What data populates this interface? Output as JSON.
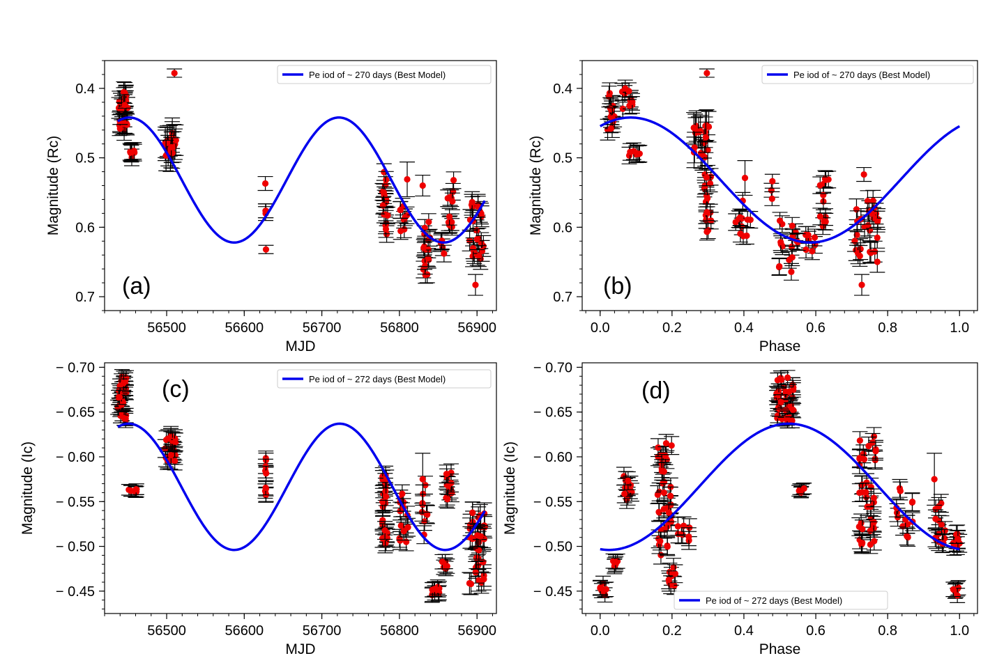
{
  "colors": {
    "model": "#0000ee",
    "points": "#ee0000",
    "errorbar": "#000000",
    "frame": "#000000"
  },
  "chart_data": [
    {
      "type": "scatter",
      "panel": "(a)",
      "xlabel": "MJD",
      "ylabel": "Magnitude (Rc)",
      "xlim": [
        56420,
        56925
      ],
      "ylim": [
        0.72,
        0.36
      ],
      "y_inverted": true,
      "xticks": [
        56500,
        56600,
        56700,
        56800,
        56900
      ],
      "xtick_labels": [
        "56500",
        "56600",
        "56700",
        "56800",
        "56900"
      ],
      "yticks": [
        0.4,
        0.5,
        0.6,
        0.7
      ],
      "ytick_labels": [
        "0.4",
        "0.5",
        "0.6",
        "0.7"
      ],
      "legend_label": "Pe iod of ~ 270 days (Best Model)",
      "legend_position": "top-right",
      "model": {
        "kind": "sinusoid",
        "period": 270,
        "mean": 0.532,
        "amplitude": 0.09,
        "phase_ref": 56587,
        "phase_ref_is": "maximum"
      },
      "groups": [
        {
          "x": [
            56437,
            56450
          ],
          "y": [
            0.4,
            0.46
          ],
          "n": 26,
          "err": 0.015
        },
        {
          "x": [
            56450,
            56462
          ],
          "y": [
            0.49,
            0.5
          ],
          "n": 8,
          "err": 0.012
        },
        {
          "x": [
            56498,
            56512
          ],
          "y": [
            0.45,
            0.5
          ],
          "n": 18,
          "err": 0.022
        },
        {
          "x": [
            56627,
            56629
          ],
          "y": [
            0.52,
            0.59
          ],
          "n": 4,
          "err": 0.01
        },
        {
          "x": [
            56778,
            56785
          ],
          "y": [
            0.52,
            0.61
          ],
          "n": 18,
          "err": 0.012
        },
        {
          "x": [
            56800,
            56812
          ],
          "y": [
            0.57,
            0.61
          ],
          "n": 8,
          "err": 0.012
        },
        {
          "x": [
            56830,
            56840
          ],
          "y": [
            0.59,
            0.67
          ],
          "n": 16,
          "err": 0.012
        },
        {
          "x": [
            56850,
            56858
          ],
          "y": [
            0.61,
            0.64
          ],
          "n": 6,
          "err": 0.012
        },
        {
          "x": [
            56862,
            56870
          ],
          "y": [
            0.53,
            0.6
          ],
          "n": 12,
          "err": 0.012
        },
        {
          "x": [
            56890,
            56910
          ],
          "y": [
            0.56,
            0.65
          ],
          "n": 24,
          "err": 0.015
        }
      ],
      "points": [
        {
          "x": 56510,
          "y": 0.378,
          "err": 0.006
        },
        {
          "x": 56628,
          "y": 0.632,
          "err": 0.006
        },
        {
          "x": 56898,
          "y": 0.683,
          "err": 0.015
        },
        {
          "x": 56810,
          "y": 0.531,
          "err": 0.025
        },
        {
          "x": 56830,
          "y": 0.54,
          "err": 0.015
        },
        {
          "x": 56440,
          "y": 0.458,
          "err": 0.006
        }
      ]
    },
    {
      "type": "scatter",
      "panel": "(b)",
      "xlabel": "Phase",
      "ylabel": "Magnitude (Rc)",
      "xlim": [
        -0.05,
        1.05
      ],
      "ylim": [
        0.72,
        0.36
      ],
      "y_inverted": true,
      "xticks": [
        0.0,
        0.2,
        0.4,
        0.6,
        0.8,
        1.0
      ],
      "xtick_labels": [
        "0.0",
        "0.2",
        "0.4",
        "0.6",
        "0.8",
        "1.0"
      ],
      "yticks": [
        0.4,
        0.5,
        0.6,
        0.7
      ],
      "ytick_labels": [
        "0.4",
        "0.5",
        "0.6",
        "0.7"
      ],
      "legend_label": "Pe iod of ~ 270 days (Best Model)",
      "legend_position": "top-right",
      "model": {
        "kind": "sinusoid-phase",
        "mean": 0.532,
        "amplitude": 0.09,
        "phase_of_max": 0.585
      },
      "groups": [
        {
          "x": [
            0.02,
            0.04
          ],
          "y": [
            0.4,
            0.46
          ],
          "n": 14,
          "err": 0.015
        },
        {
          "x": [
            0.06,
            0.09
          ],
          "y": [
            0.4,
            0.43
          ],
          "n": 10,
          "err": 0.012
        },
        {
          "x": [
            0.08,
            0.11
          ],
          "y": [
            0.49,
            0.5
          ],
          "n": 8,
          "err": 0.012
        },
        {
          "x": [
            0.26,
            0.31
          ],
          "y": [
            0.45,
            0.5
          ],
          "n": 18,
          "err": 0.022
        },
        {
          "x": [
            0.29,
            0.31
          ],
          "y": [
            0.52,
            0.61
          ],
          "n": 16,
          "err": 0.012
        },
        {
          "x": [
            0.37,
            0.42
          ],
          "y": [
            0.56,
            0.62
          ],
          "n": 12,
          "err": 0.012
        },
        {
          "x": [
            0.46,
            0.48
          ],
          "y": [
            0.53,
            0.56
          ],
          "n": 3,
          "err": 0.01
        },
        {
          "x": [
            0.49,
            0.55
          ],
          "y": [
            0.59,
            0.67
          ],
          "n": 16,
          "err": 0.012
        },
        {
          "x": [
            0.55,
            0.6
          ],
          "y": [
            0.61,
            0.64
          ],
          "n": 8,
          "err": 0.012
        },
        {
          "x": [
            0.61,
            0.64
          ],
          "y": [
            0.53,
            0.6
          ],
          "n": 12,
          "err": 0.012
        },
        {
          "x": [
            0.7,
            0.78
          ],
          "y": [
            0.56,
            0.65
          ],
          "n": 26,
          "err": 0.015
        }
      ],
      "points": [
        {
          "x": 0.297,
          "y": 0.378,
          "err": 0.006
        },
        {
          "x": 0.728,
          "y": 0.683,
          "err": 0.015
        },
        {
          "x": 0.734,
          "y": 0.524,
          "err": 0.01
        },
        {
          "x": 0.403,
          "y": 0.529,
          "err": 0.025
        },
        {
          "x": 0.03,
          "y": 0.458,
          "err": 0.006
        }
      ]
    },
    {
      "type": "scatter",
      "panel": "(c)",
      "xlabel": "MJD",
      "ylabel": "Magnitude (Ic)",
      "xlim": [
        56420,
        56925
      ],
      "ylim": [
        -0.425,
        -0.705
      ],
      "y_inverted": true,
      "xticks": [
        56500,
        56600,
        56700,
        56800,
        56900
      ],
      "xtick_labels": [
        "56500",
        "56600",
        "56700",
        "56800",
        "56900"
      ],
      "yticks": [
        -0.7,
        -0.65,
        -0.6,
        -0.55,
        -0.5,
        -0.45
      ],
      "ytick_labels": [
        "− 0.70",
        "− 0.65",
        "− 0.60",
        "− 0.55",
        "− 0.50",
        "− 0.45"
      ],
      "legend_label": "Pe iod of ~ 272 days (Best Model)",
      "legend_position": "top-right",
      "model": {
        "kind": "sinusoid",
        "period": 272,
        "mean": -0.5665,
        "amplitude": 0.0705,
        "phase_ref": 56587,
        "phase_ref_is": "maximum"
      },
      "groups": [
        {
          "x": [
            56437,
            56448
          ],
          "y": [
            -0.64,
            -0.69
          ],
          "n": 40,
          "err": 0.008
        },
        {
          "x": [
            56450,
            56462
          ],
          "y": [
            -0.56,
            -0.565
          ],
          "n": 8,
          "err": 0.006
        },
        {
          "x": [
            56498,
            56512
          ],
          "y": [
            -0.595,
            -0.625
          ],
          "n": 24,
          "err": 0.01
        },
        {
          "x": [
            56627,
            56629
          ],
          "y": [
            -0.545,
            -0.62
          ],
          "n": 10,
          "err": 0.008
        },
        {
          "x": [
            56778,
            56785
          ],
          "y": [
            -0.5,
            -0.585
          ],
          "n": 26,
          "err": 0.01
        },
        {
          "x": [
            56800,
            56812
          ],
          "y": [
            -0.505,
            -0.565
          ],
          "n": 14,
          "err": 0.01
        },
        {
          "x": [
            56828,
            56836
          ],
          "y": [
            -0.51,
            -0.575
          ],
          "n": 10,
          "err": 0.01
        },
        {
          "x": [
            56840,
            56852
          ],
          "y": [
            -0.445,
            -0.455
          ],
          "n": 12,
          "err": 0.008
        },
        {
          "x": [
            56855,
            56862
          ],
          "y": [
            -0.475,
            -0.485
          ],
          "n": 6,
          "err": 0.008
        },
        {
          "x": [
            56860,
            56870
          ],
          "y": [
            -0.55,
            -0.585
          ],
          "n": 12,
          "err": 0.01
        },
        {
          "x": [
            56890,
            56910
          ],
          "y": [
            -0.455,
            -0.54
          ],
          "n": 36,
          "err": 0.012
        }
      ],
      "points": [
        {
          "x": 56830,
          "y": -0.575,
          "err": 0.029
        }
      ]
    },
    {
      "type": "scatter",
      "panel": "(d)",
      "xlabel": "Phase",
      "ylabel": "Magnitude (Ic)",
      "xlim": [
        -0.05,
        1.05
      ],
      "ylim": [
        -0.425,
        -0.705
      ],
      "y_inverted": true,
      "xticks": [
        0.0,
        0.2,
        0.4,
        0.6,
        0.8,
        1.0
      ],
      "xtick_labels": [
        "0.0",
        "0.2",
        "0.4",
        "0.6",
        "0.8",
        "1.0"
      ],
      "yticks": [
        -0.7,
        -0.65,
        -0.6,
        -0.55,
        -0.5,
        -0.45
      ],
      "ytick_labels": [
        "− 0.70",
        "− 0.65",
        "− 0.60",
        "− 0.55",
        "− 0.50",
        "− 0.45"
      ],
      "legend_label": "Pe iod of ~ 272 days (Best Model)",
      "legend_position": "bottom-center",
      "model": {
        "kind": "sinusoid-phase",
        "mean": -0.5665,
        "amplitude": 0.0705,
        "phase_of_max": 0.025
      },
      "groups": [
        {
          "x": [
            0.0,
            0.02
          ],
          "y": [
            -0.445,
            -0.46
          ],
          "n": 8,
          "err": 0.008
        },
        {
          "x": [
            0.03,
            0.05
          ],
          "y": [
            -0.475,
            -0.485
          ],
          "n": 6,
          "err": 0.008
        },
        {
          "x": [
            0.06,
            0.09
          ],
          "y": [
            -0.55,
            -0.58
          ],
          "n": 12,
          "err": 0.01
        },
        {
          "x": [
            0.16,
            0.2
          ],
          "y": [
            -0.49,
            -0.62
          ],
          "n": 40,
          "err": 0.01
        },
        {
          "x": [
            0.18,
            0.21
          ],
          "y": [
            -0.455,
            -0.48
          ],
          "n": 8,
          "err": 0.01
        },
        {
          "x": [
            0.21,
            0.25
          ],
          "y": [
            -0.505,
            -0.525
          ],
          "n": 8,
          "err": 0.01
        },
        {
          "x": [
            0.49,
            0.54
          ],
          "y": [
            -0.64,
            -0.69
          ],
          "n": 40,
          "err": 0.008
        },
        {
          "x": [
            0.55,
            0.57
          ],
          "y": [
            -0.56,
            -0.565
          ],
          "n": 8,
          "err": 0.006
        },
        {
          "x": [
            0.72,
            0.77
          ],
          "y": [
            -0.5,
            -0.625
          ],
          "n": 40,
          "err": 0.01
        },
        {
          "x": [
            0.82,
            0.87
          ],
          "y": [
            -0.505,
            -0.565
          ],
          "n": 14,
          "err": 0.01
        },
        {
          "x": [
            0.93,
            0.96
          ],
          "y": [
            -0.5,
            -0.55
          ],
          "n": 14,
          "err": 0.01
        },
        {
          "x": [
            0.97,
            1.0
          ],
          "y": [
            -0.5,
            -0.52
          ],
          "n": 10,
          "err": 0.01
        },
        {
          "x": [
            0.98,
            1.0
          ],
          "y": [
            -0.445,
            -0.455
          ],
          "n": 6,
          "err": 0.008
        }
      ],
      "points": [
        {
          "x": 0.93,
          "y": -0.575,
          "err": 0.029
        }
      ]
    }
  ]
}
